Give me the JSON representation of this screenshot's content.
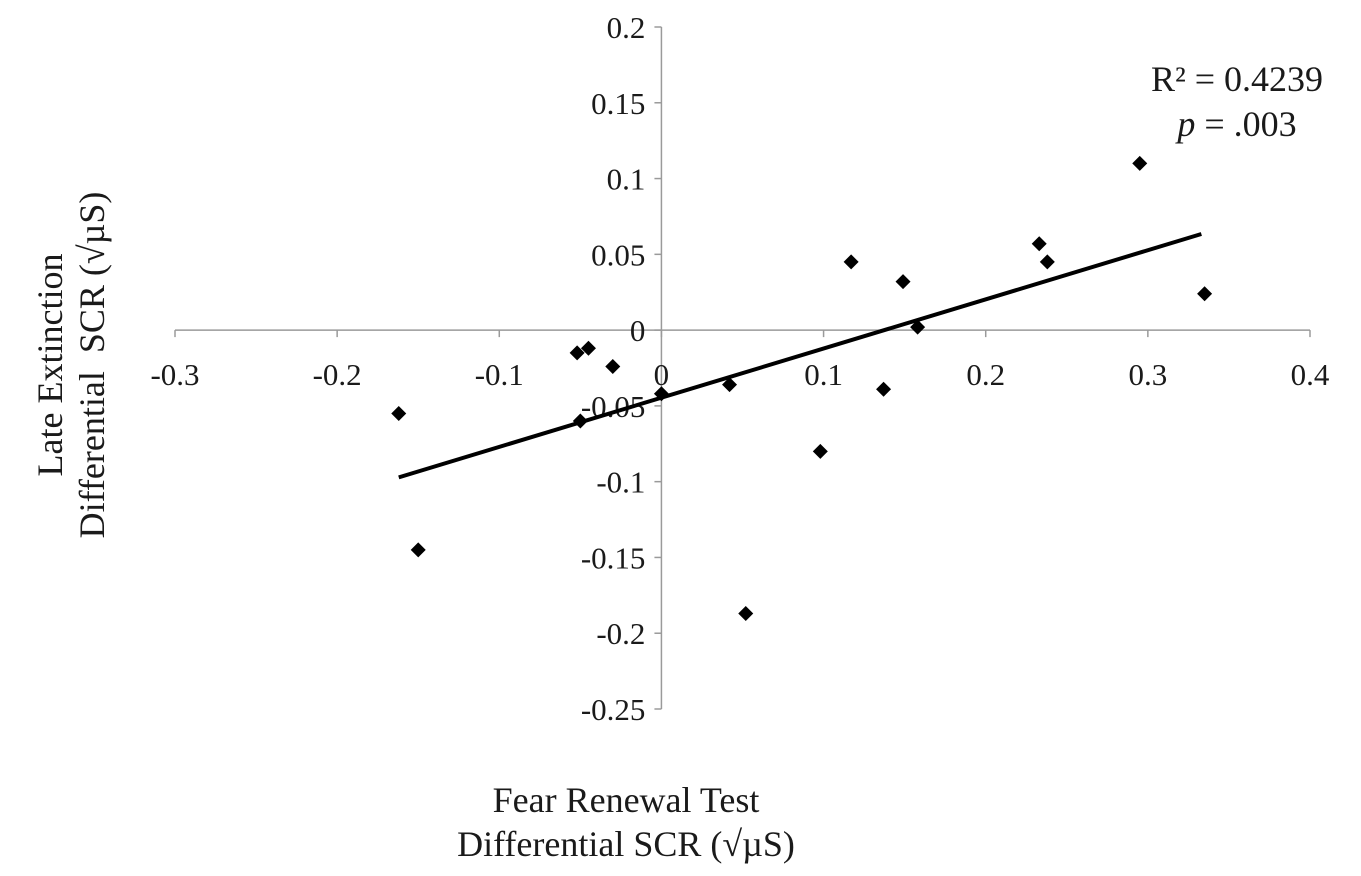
{
  "chart_data": {
    "type": "scatter",
    "title": "",
    "xlabel": [
      "Fear Renewal Test",
      "Differential SCR (√µS)"
    ],
    "ylabel": [
      "Late Extinction",
      "Differential  SCR (√µS)"
    ],
    "xlim": [
      -0.3,
      0.4
    ],
    "ylim": [
      -0.25,
      0.2
    ],
    "xticks": [
      -0.3,
      -0.2,
      -0.1,
      0,
      0.1,
      0.2,
      0.3,
      0.4
    ],
    "xtick_labels": [
      "-0.3",
      "-0.2",
      "-0.1",
      "0",
      "0.1",
      "0.2",
      "0.3",
      "0.4"
    ],
    "yticks": [
      0.2,
      0.15,
      0.1,
      0.05,
      0,
      -0.05,
      -0.1,
      -0.15,
      -0.2,
      -0.25
    ],
    "ytick_labels": [
      "0.2",
      "0.15",
      "0.1",
      "0.05",
      "0",
      "-0.05",
      "-0.1",
      "-0.15",
      "-0.2",
      "-0.25"
    ],
    "grid": false,
    "marker": "diamond",
    "points": [
      {
        "x": -0.162,
        "y": -0.055
      },
      {
        "x": -0.15,
        "y": -0.145
      },
      {
        "x": -0.052,
        "y": -0.015
      },
      {
        "x": -0.045,
        "y": -0.012
      },
      {
        "x": -0.05,
        "y": -0.06
      },
      {
        "x": -0.03,
        "y": -0.024
      },
      {
        "x": 0.0,
        "y": -0.042
      },
      {
        "x": 0.042,
        "y": -0.036
      },
      {
        "x": 0.052,
        "y": -0.187
      },
      {
        "x": 0.098,
        "y": -0.08
      },
      {
        "x": 0.117,
        "y": 0.045
      },
      {
        "x": 0.137,
        "y": -0.039
      },
      {
        "x": 0.149,
        "y": 0.032
      },
      {
        "x": 0.158,
        "y": 0.002
      },
      {
        "x": 0.233,
        "y": 0.057
      },
      {
        "x": 0.238,
        "y": 0.045
      },
      {
        "x": 0.295,
        "y": 0.11
      },
      {
        "x": 0.335,
        "y": 0.024
      }
    ],
    "trendline": {
      "x1": -0.162,
      "x2": 0.333,
      "slope": 0.3244,
      "intercept": -0.0446
    },
    "annotation": {
      "r2": "R² = 0.4239",
      "p_italic": "p",
      "p_rest": " = .003"
    },
    "colors": {
      "points": "#000000",
      "line": "#000000",
      "axis": "#9a9a9a"
    }
  }
}
